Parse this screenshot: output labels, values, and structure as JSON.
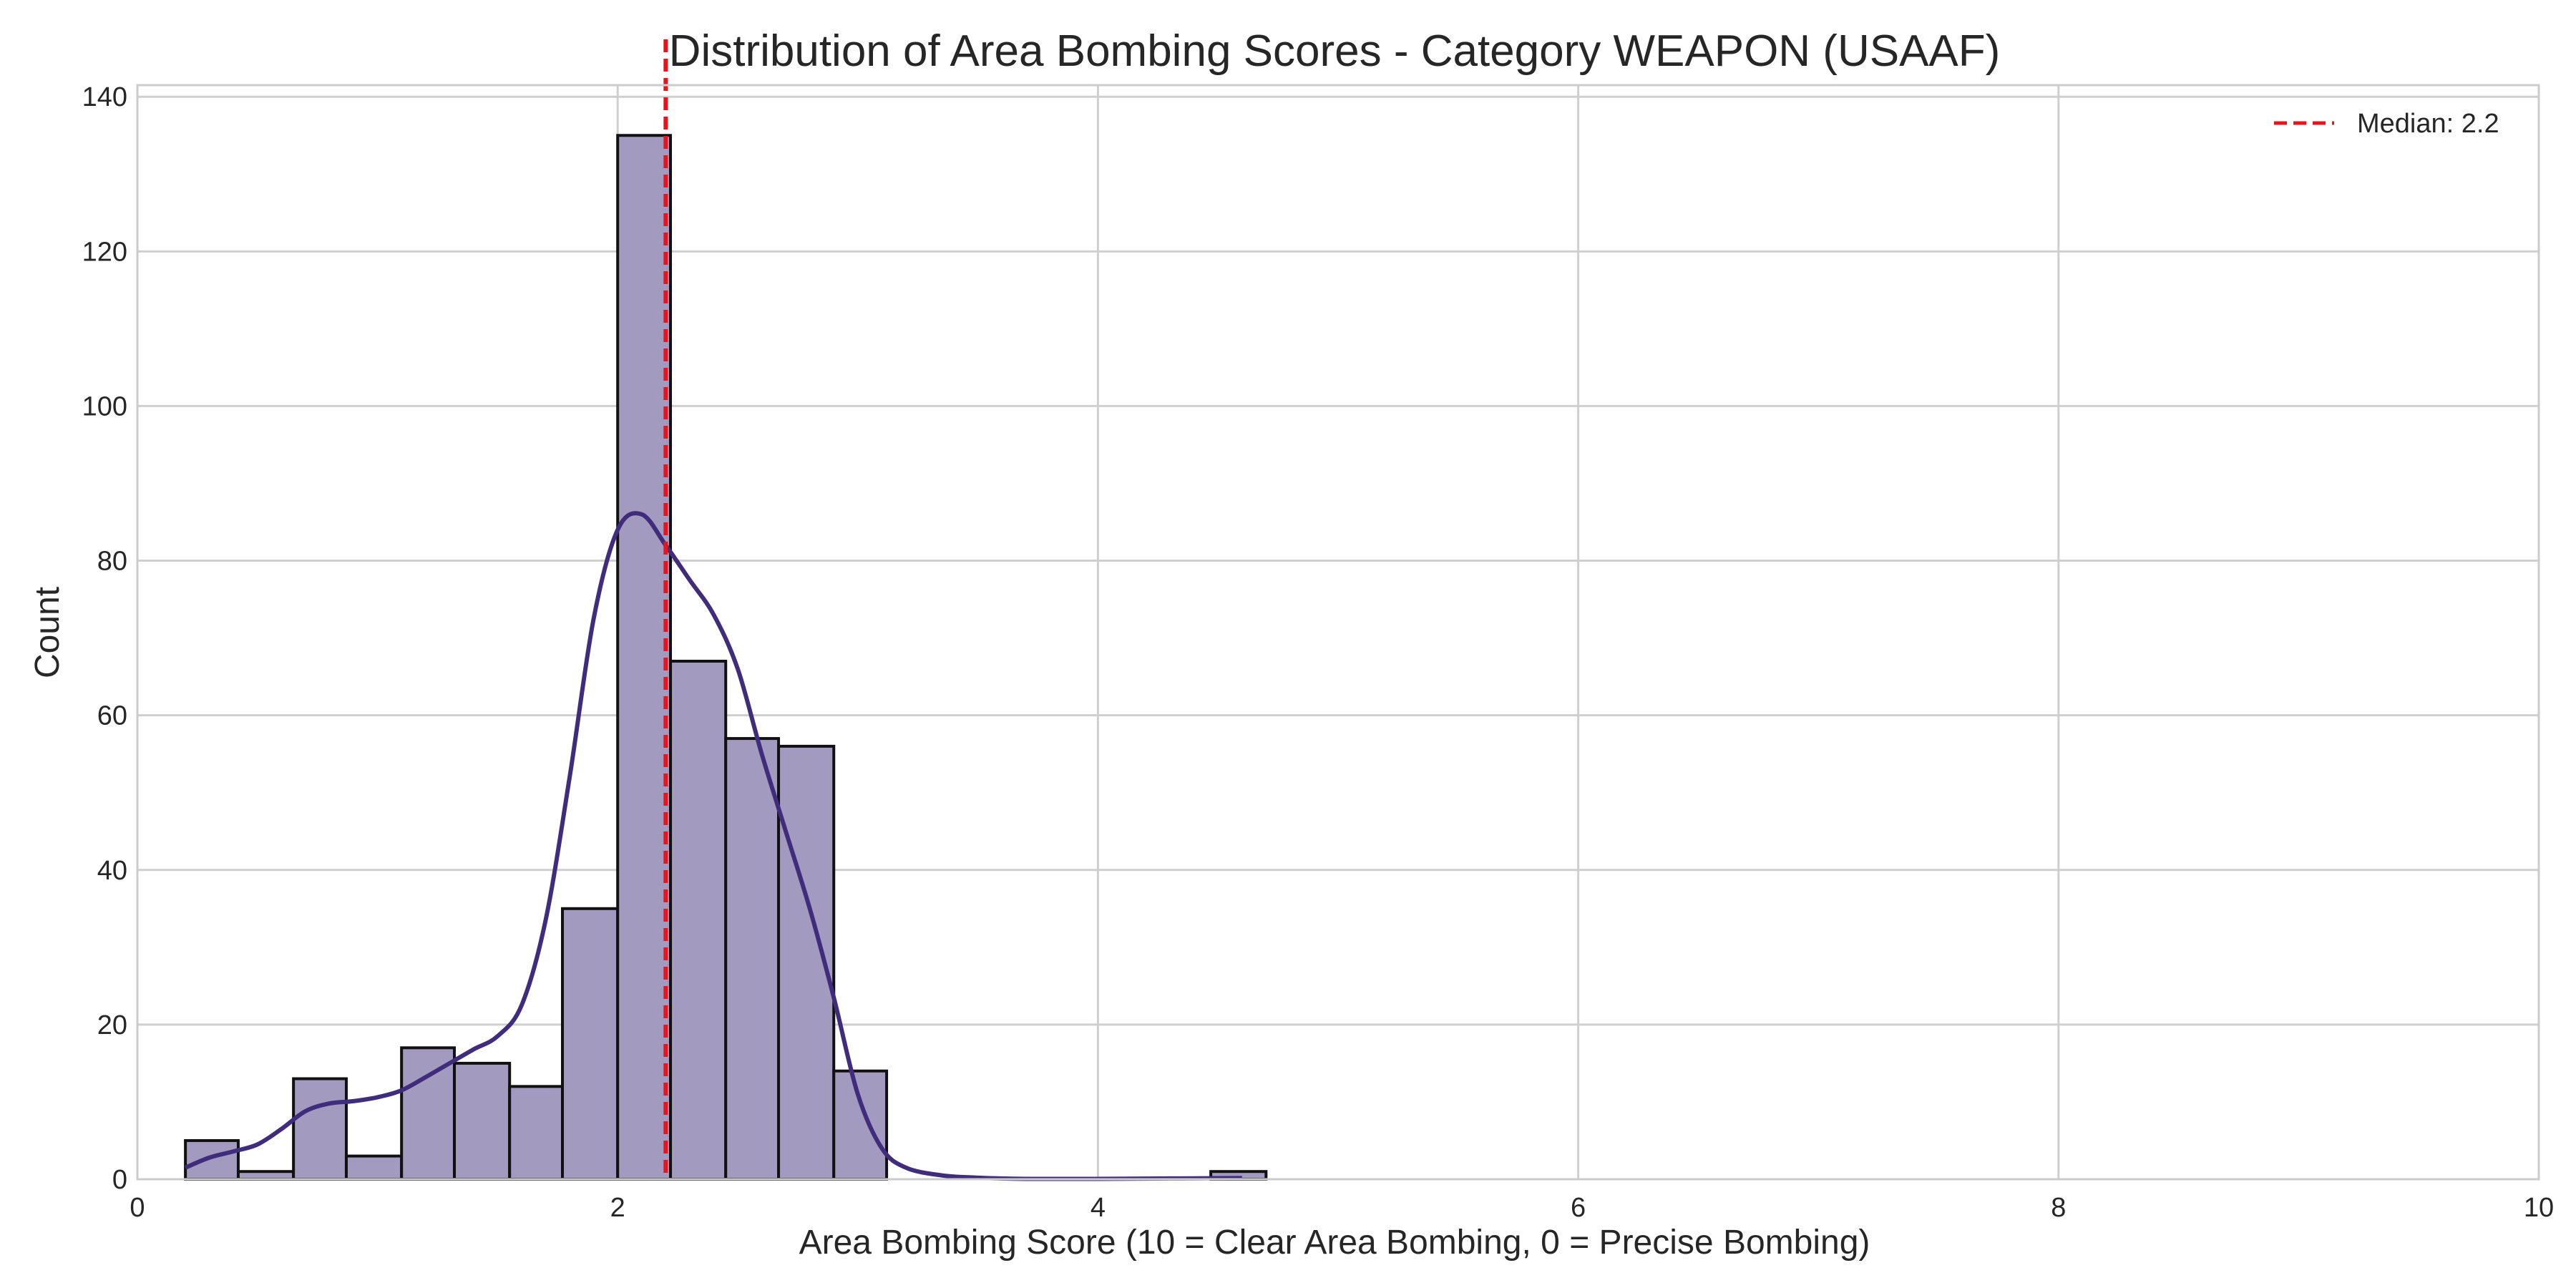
{
  "chart_data": {
    "type": "bar",
    "title": "Distribution of Area Bombing Scores - Category WEAPON (USAAF)",
    "xlabel": "Area Bombing Score (10 = Clear Area Bombing, 0 = Precise Bombing)",
    "ylabel": "Count",
    "xlim": [
      0,
      10
    ],
    "ylim": [
      0,
      141.5
    ],
    "xticks": [
      0,
      2,
      4,
      6,
      8,
      10
    ],
    "yticks": [
      0,
      20,
      40,
      60,
      80,
      100,
      120,
      140
    ],
    "grid": true,
    "bins": [
      {
        "x0": 0.2,
        "x1": 0.42,
        "count": 5
      },
      {
        "x0": 0.42,
        "x1": 0.65,
        "count": 1
      },
      {
        "x0": 0.65,
        "x1": 0.87,
        "count": 13
      },
      {
        "x0": 0.87,
        "x1": 1.1,
        "count": 3
      },
      {
        "x0": 1.1,
        "x1": 1.32,
        "count": 17
      },
      {
        "x0": 1.32,
        "x1": 1.55,
        "count": 15
      },
      {
        "x0": 1.55,
        "x1": 1.77,
        "count": 12
      },
      {
        "x0": 1.77,
        "x1": 2.0,
        "count": 35
      },
      {
        "x0": 2.0,
        "x1": 2.22,
        "count": 135
      },
      {
        "x0": 2.22,
        "x1": 2.45,
        "count": 67
      },
      {
        "x0": 2.45,
        "x1": 2.67,
        "count": 57
      },
      {
        "x0": 2.67,
        "x1": 2.9,
        "count": 56
      },
      {
        "x0": 2.9,
        "x1": 3.12,
        "count": 14
      },
      {
        "x0": 4.47,
        "x1": 4.7,
        "count": 1
      }
    ],
    "kde": [
      [
        0.2,
        1.5
      ],
      [
        0.3,
        2.8
      ],
      [
        0.4,
        3.6
      ],
      [
        0.5,
        4.5
      ],
      [
        0.6,
        6.5
      ],
      [
        0.7,
        8.8
      ],
      [
        0.8,
        9.8
      ],
      [
        0.9,
        10.1
      ],
      [
        1.0,
        10.6
      ],
      [
        1.1,
        11.5
      ],
      [
        1.2,
        13.2
      ],
      [
        1.3,
        15.0
      ],
      [
        1.4,
        16.8
      ],
      [
        1.5,
        18.5
      ],
      [
        1.6,
        22.5
      ],
      [
        1.7,
        33.5
      ],
      [
        1.8,
        52.0
      ],
      [
        1.9,
        72.5
      ],
      [
        2.0,
        84.0
      ],
      [
        2.1,
        86.0
      ],
      [
        2.2,
        82.0
      ],
      [
        2.3,
        77.5
      ],
      [
        2.4,
        73.0
      ],
      [
        2.5,
        66.0
      ],
      [
        2.6,
        55.0
      ],
      [
        2.7,
        45.0
      ],
      [
        2.8,
        35.0
      ],
      [
        2.9,
        23.5
      ],
      [
        3.0,
        11.0
      ],
      [
        3.1,
        4.0
      ],
      [
        3.2,
        1.5
      ],
      [
        3.35,
        0.5
      ],
      [
        3.5,
        0.2
      ],
      [
        3.7,
        0.05
      ],
      [
        4.0,
        0.05
      ],
      [
        4.3,
        0.1
      ],
      [
        4.6,
        0.15
      ]
    ],
    "median": 2.2,
    "legend": {
      "label": "Median: 2.2",
      "placement": "top-right"
    },
    "colors": {
      "bar_fill": "#a29bbf",
      "bar_edge": "#111111",
      "kde_line": "#3f2d7c",
      "median_line": "#e8141c",
      "grid": "#cfcfcf",
      "spine": "#cccccc",
      "text": "#262626"
    }
  }
}
